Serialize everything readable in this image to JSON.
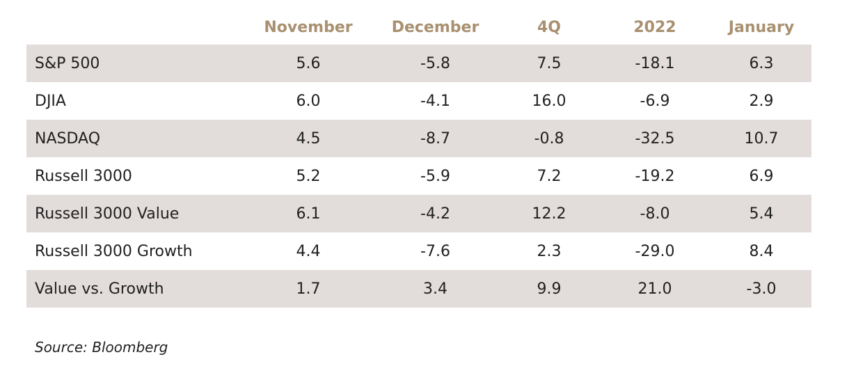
{
  "chart_data": {
    "type": "table",
    "columns": [
      "November",
      "December",
      "4Q",
      "2022",
      "January"
    ],
    "rows": [
      {
        "label": "S&P 500",
        "values": [
          "5.6",
          "-5.8",
          "7.5",
          "-18.1",
          "6.3"
        ]
      },
      {
        "label": "DJIA",
        "values": [
          "6.0",
          "-4.1",
          "16.0",
          "-6.9",
          "2.9"
        ]
      },
      {
        "label": "NASDAQ",
        "values": [
          "4.5",
          "-8.7",
          "-0.8",
          "-32.5",
          "10.7"
        ]
      },
      {
        "label": "Russell 3000",
        "values": [
          "5.2",
          "-5.9",
          "7.2",
          "-19.2",
          "6.9"
        ]
      },
      {
        "label": "Russell 3000 Value",
        "values": [
          "6.1",
          "-4.2",
          "12.2",
          "-8.0",
          "5.4"
        ]
      },
      {
        "label": "Russell 3000 Growth",
        "values": [
          "4.4",
          "-7.6",
          "2.3",
          "-29.0",
          "8.4"
        ]
      },
      {
        "label": "Value vs. Growth",
        "values": [
          "1.7",
          "3.4",
          "9.9",
          "21.0",
          "-3.0"
        ]
      }
    ],
    "header_color": "#a89070",
    "shaded_row_color": "#e2dcda",
    "source": "Source: Bloomberg"
  }
}
